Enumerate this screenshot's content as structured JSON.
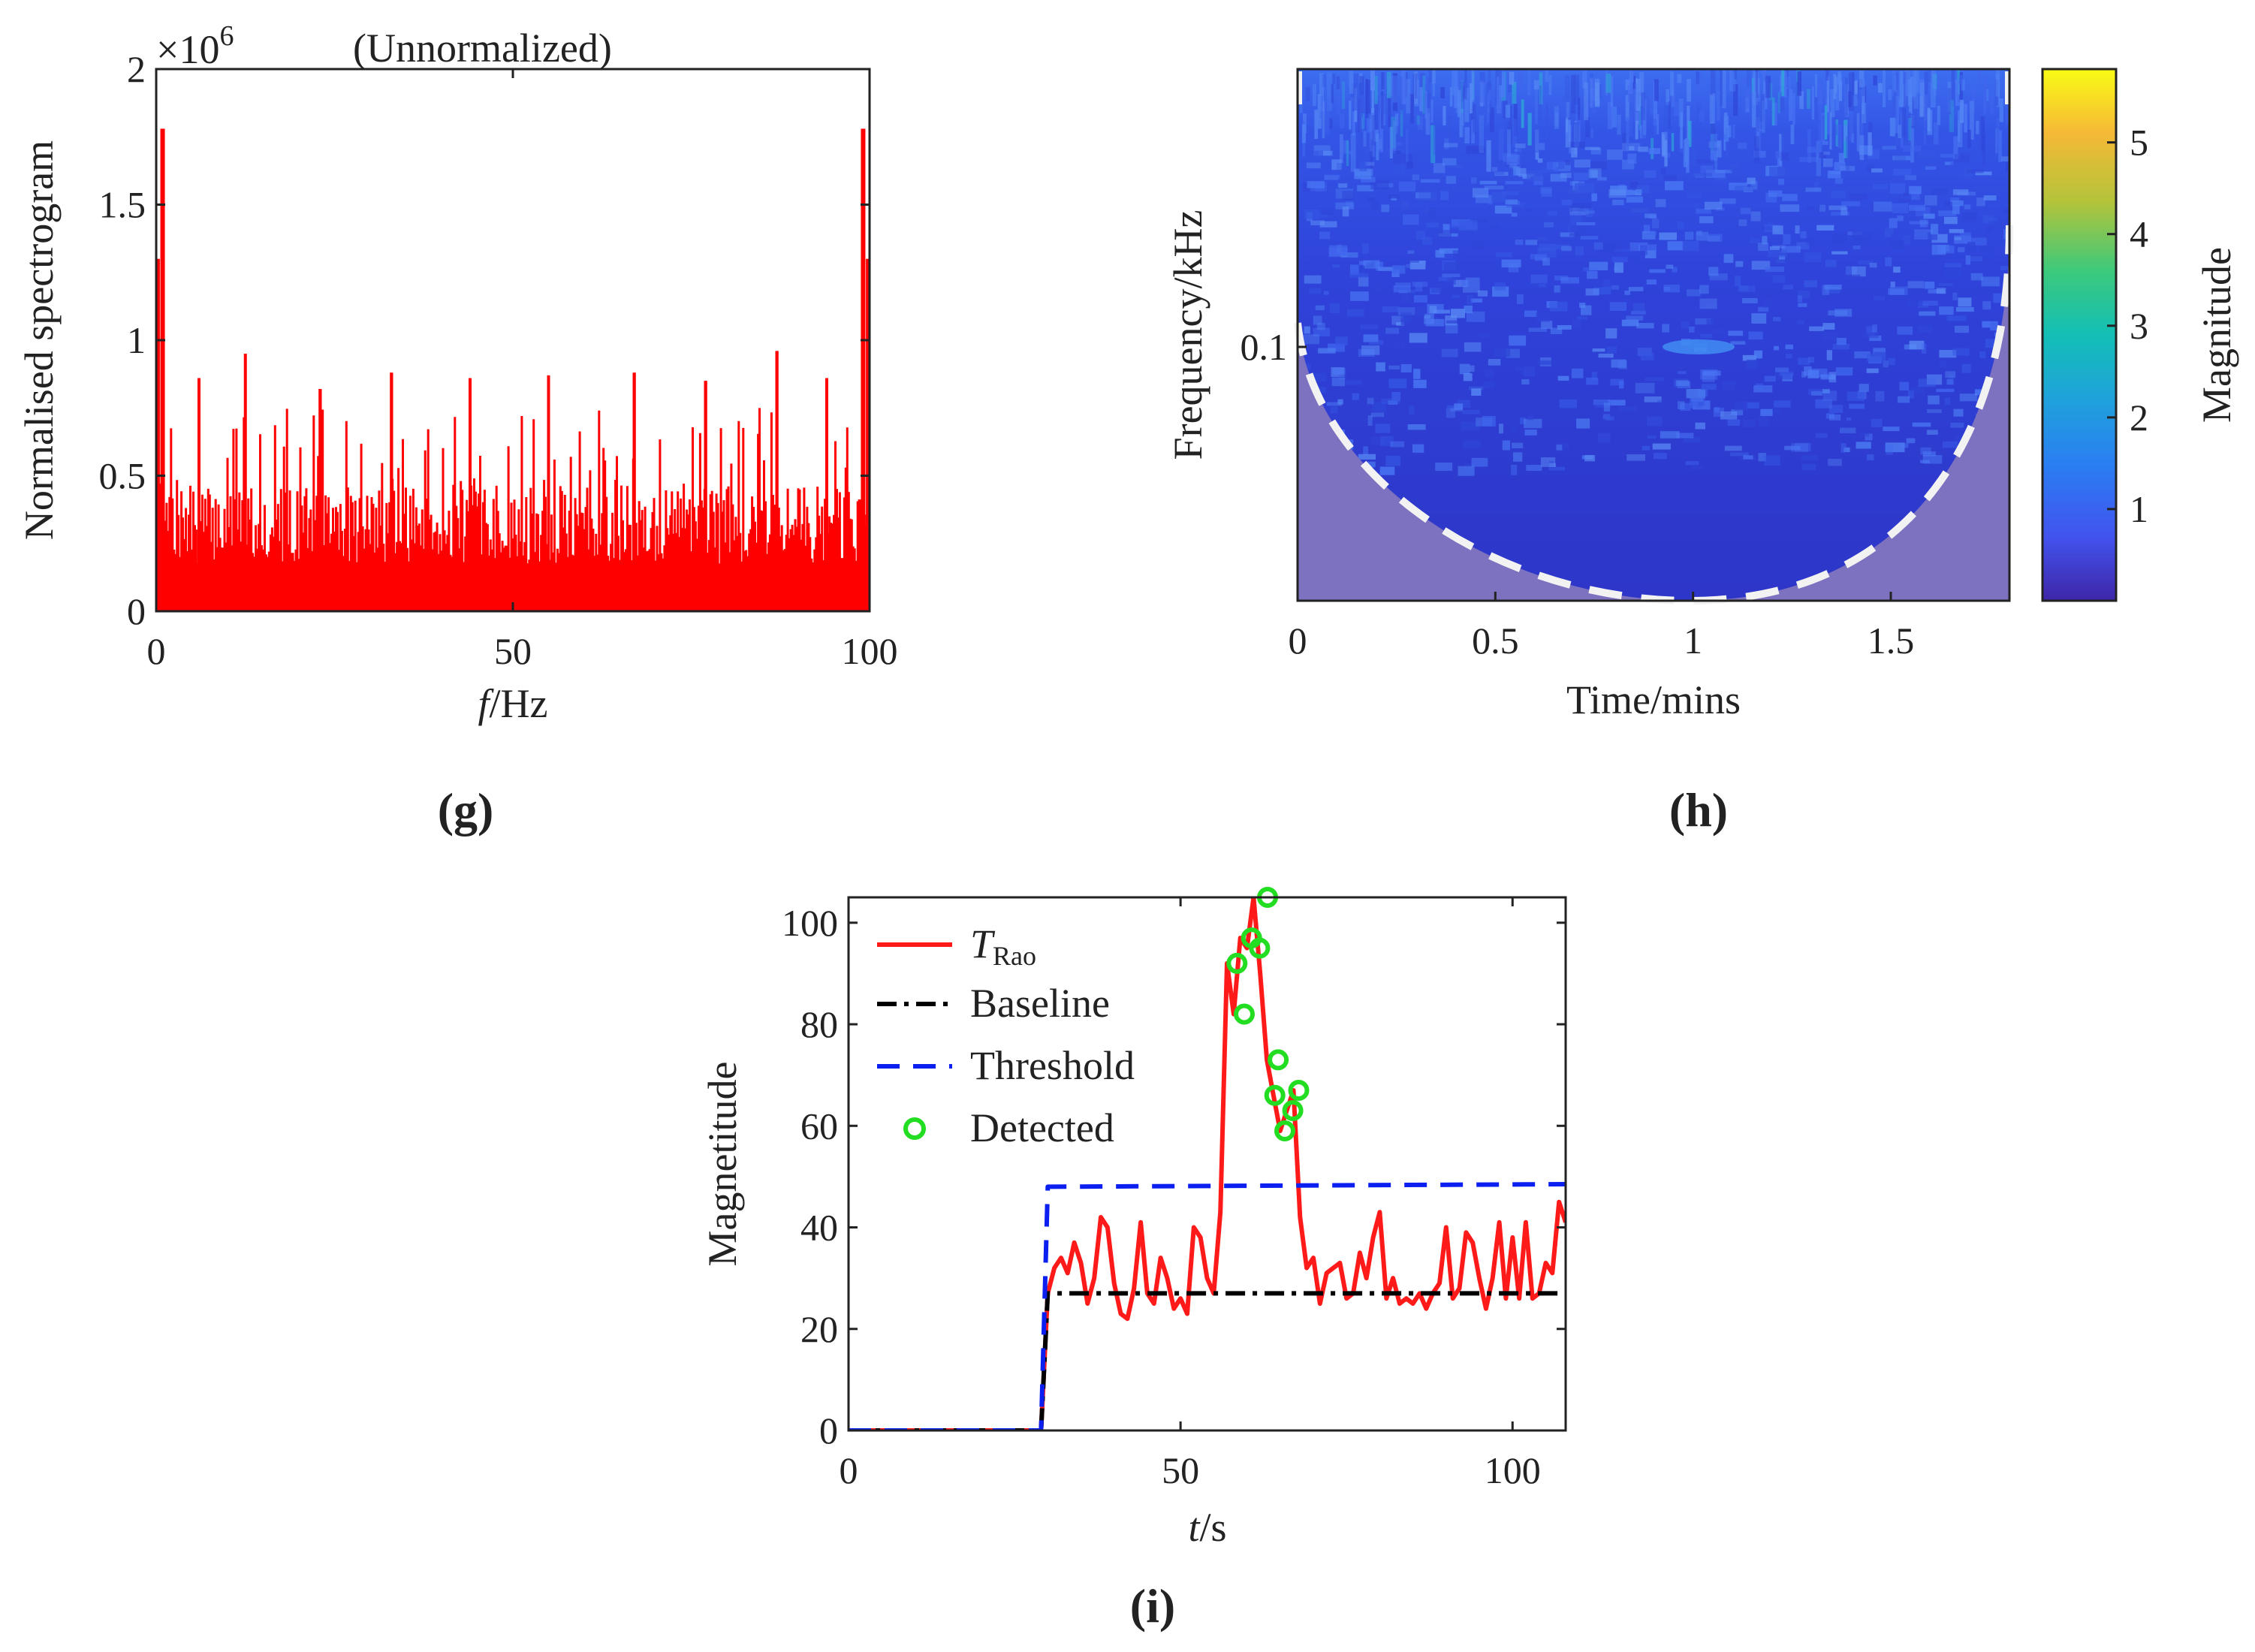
{
  "chart_data": [
    {
      "type": "bar",
      "panel_label": "(g)",
      "title": "(Unnormalized)",
      "xlabel_var": "f",
      "xlabel_unit": "/Hz",
      "ylabel": "Normalised spectrogram",
      "y_multiplier": "×10",
      "y_exponent": "6",
      "xlim": [
        0,
        100
      ],
      "ylim": [
        0,
        2
      ],
      "xticks": [
        "0",
        "50",
        "100"
      ],
      "yticks": [
        "0",
        "0.5",
        "1",
        "1.5",
        "2"
      ],
      "color": "#ff0000",
      "edge_peaks": [
        {
          "x": 0.2,
          "y": 1.3
        },
        {
          "x": 0.9,
          "y": 1.78
        },
        {
          "x": 99.1,
          "y": 1.78
        },
        {
          "x": 99.8,
          "y": 1.3
        }
      ],
      "noise_floor_mean": 0.32,
      "notable_peaks": [
        {
          "x": 6,
          "y": 0.86
        },
        {
          "x": 12.5,
          "y": 0.95
        },
        {
          "x": 23,
          "y": 0.82
        },
        {
          "x": 33,
          "y": 0.88
        },
        {
          "x": 44,
          "y": 0.86
        },
        {
          "x": 55,
          "y": 0.87
        },
        {
          "x": 67,
          "y": 0.88
        },
        {
          "x": 77,
          "y": 0.85
        },
        {
          "x": 87,
          "y": 0.96
        },
        {
          "x": 94,
          "y": 0.86
        }
      ]
    },
    {
      "type": "heatmap",
      "panel_label": "(h)",
      "xlabel": "Time/mins",
      "ylabel": "Frequency/kHz",
      "colorbar_label": "Magnitude",
      "xlim": [
        0,
        1.8
      ],
      "xticks": [
        "0",
        "0.5",
        "1",
        "1.5"
      ],
      "yticks": [
        "0.1"
      ],
      "colorbar_ticks": [
        "1",
        "2",
        "3",
        "4",
        "5"
      ],
      "colorbar_range": [
        0,
        5.8
      ],
      "colormap": [
        "#3e26a8",
        "#4253ee",
        "#2b7cf3",
        "#1fa2db",
        "#13bfb6",
        "#3cc97c",
        "#b3c43a",
        "#f6b936",
        "#f9fb15"
      ],
      "cone_of_influence": "dashed white",
      "hotspot": {
        "time": 0.95,
        "frequency": 0.1
      }
    },
    {
      "type": "line",
      "panel_label": "(i)",
      "xlabel_var": "t",
      "xlabel_unit": "/s",
      "ylabel": "Magnetitude",
      "xlim": [
        0,
        108
      ],
      "ylim": [
        0,
        105
      ],
      "xticks": [
        "0",
        "50",
        "100"
      ],
      "yticks": [
        "0",
        "20",
        "40",
        "60",
        "80",
        "100"
      ],
      "legend_position": "top-left",
      "series": [
        {
          "name": "T",
          "name_subscript": "Rao",
          "style": "solid",
          "color": "#ff1a1a",
          "x": [
            0,
            10,
            20,
            29,
            30,
            31,
            32,
            33,
            34,
            35,
            36,
            37,
            38,
            39,
            40,
            41,
            42,
            43,
            44,
            45,
            46,
            47,
            48,
            49,
            50,
            51,
            52,
            53,
            54,
            55,
            56,
            57,
            58,
            59,
            60,
            61,
            62,
            63,
            64,
            65,
            66,
            67,
            68,
            69,
            70,
            71,
            72,
            73,
            74,
            75,
            76,
            77,
            78,
            79,
            80,
            81,
            82,
            83,
            84,
            85,
            86,
            87,
            88,
            89,
            90,
            91,
            92,
            93,
            94,
            95,
            96,
            97,
            98,
            99,
            100,
            101,
            102,
            103,
            104,
            105,
            106,
            107,
            108
          ],
          "y": [
            0,
            0,
            0,
            0,
            27,
            32,
            34,
            31,
            37,
            33,
            25,
            30,
            42,
            40,
            29,
            23,
            22,
            28,
            41,
            27,
            25,
            34,
            30,
            24,
            26,
            23,
            40,
            38,
            30,
            27,
            43,
            92,
            82,
            97,
            95,
            105,
            90,
            73,
            66,
            59,
            63,
            67,
            42,
            32,
            34,
            25,
            31,
            32,
            33,
            26,
            27,
            35,
            30,
            38,
            43,
            26,
            30,
            25,
            26,
            25,
            27,
            24,
            27,
            29,
            40,
            26,
            28,
            39,
            37,
            30,
            24,
            30,
            41,
            26,
            38,
            26,
            41,
            26,
            27,
            33,
            31,
            45,
            41
          ]
        },
        {
          "name": "Baseline",
          "style": "dashdot",
          "color": "#000000",
          "x": [
            0,
            29,
            30,
            108
          ],
          "y": [
            0,
            0,
            27,
            27
          ]
        },
        {
          "name": "Threshold",
          "style": "dashed",
          "color": "#0b1ff0",
          "x": [
            0,
            29,
            30,
            108
          ],
          "y": [
            0,
            0,
            48,
            48.5
          ]
        },
        {
          "name": "Detected",
          "style": "markers",
          "color": "#22dd22",
          "x": [
            58.5,
            59.6,
            60.7,
            61.9,
            63.1,
            64.2,
            64.7,
            65.7,
            66.9,
            67.8
          ],
          "y": [
            92,
            82,
            97,
            95,
            105,
            66,
            73,
            59,
            63,
            67
          ]
        }
      ]
    }
  ]
}
